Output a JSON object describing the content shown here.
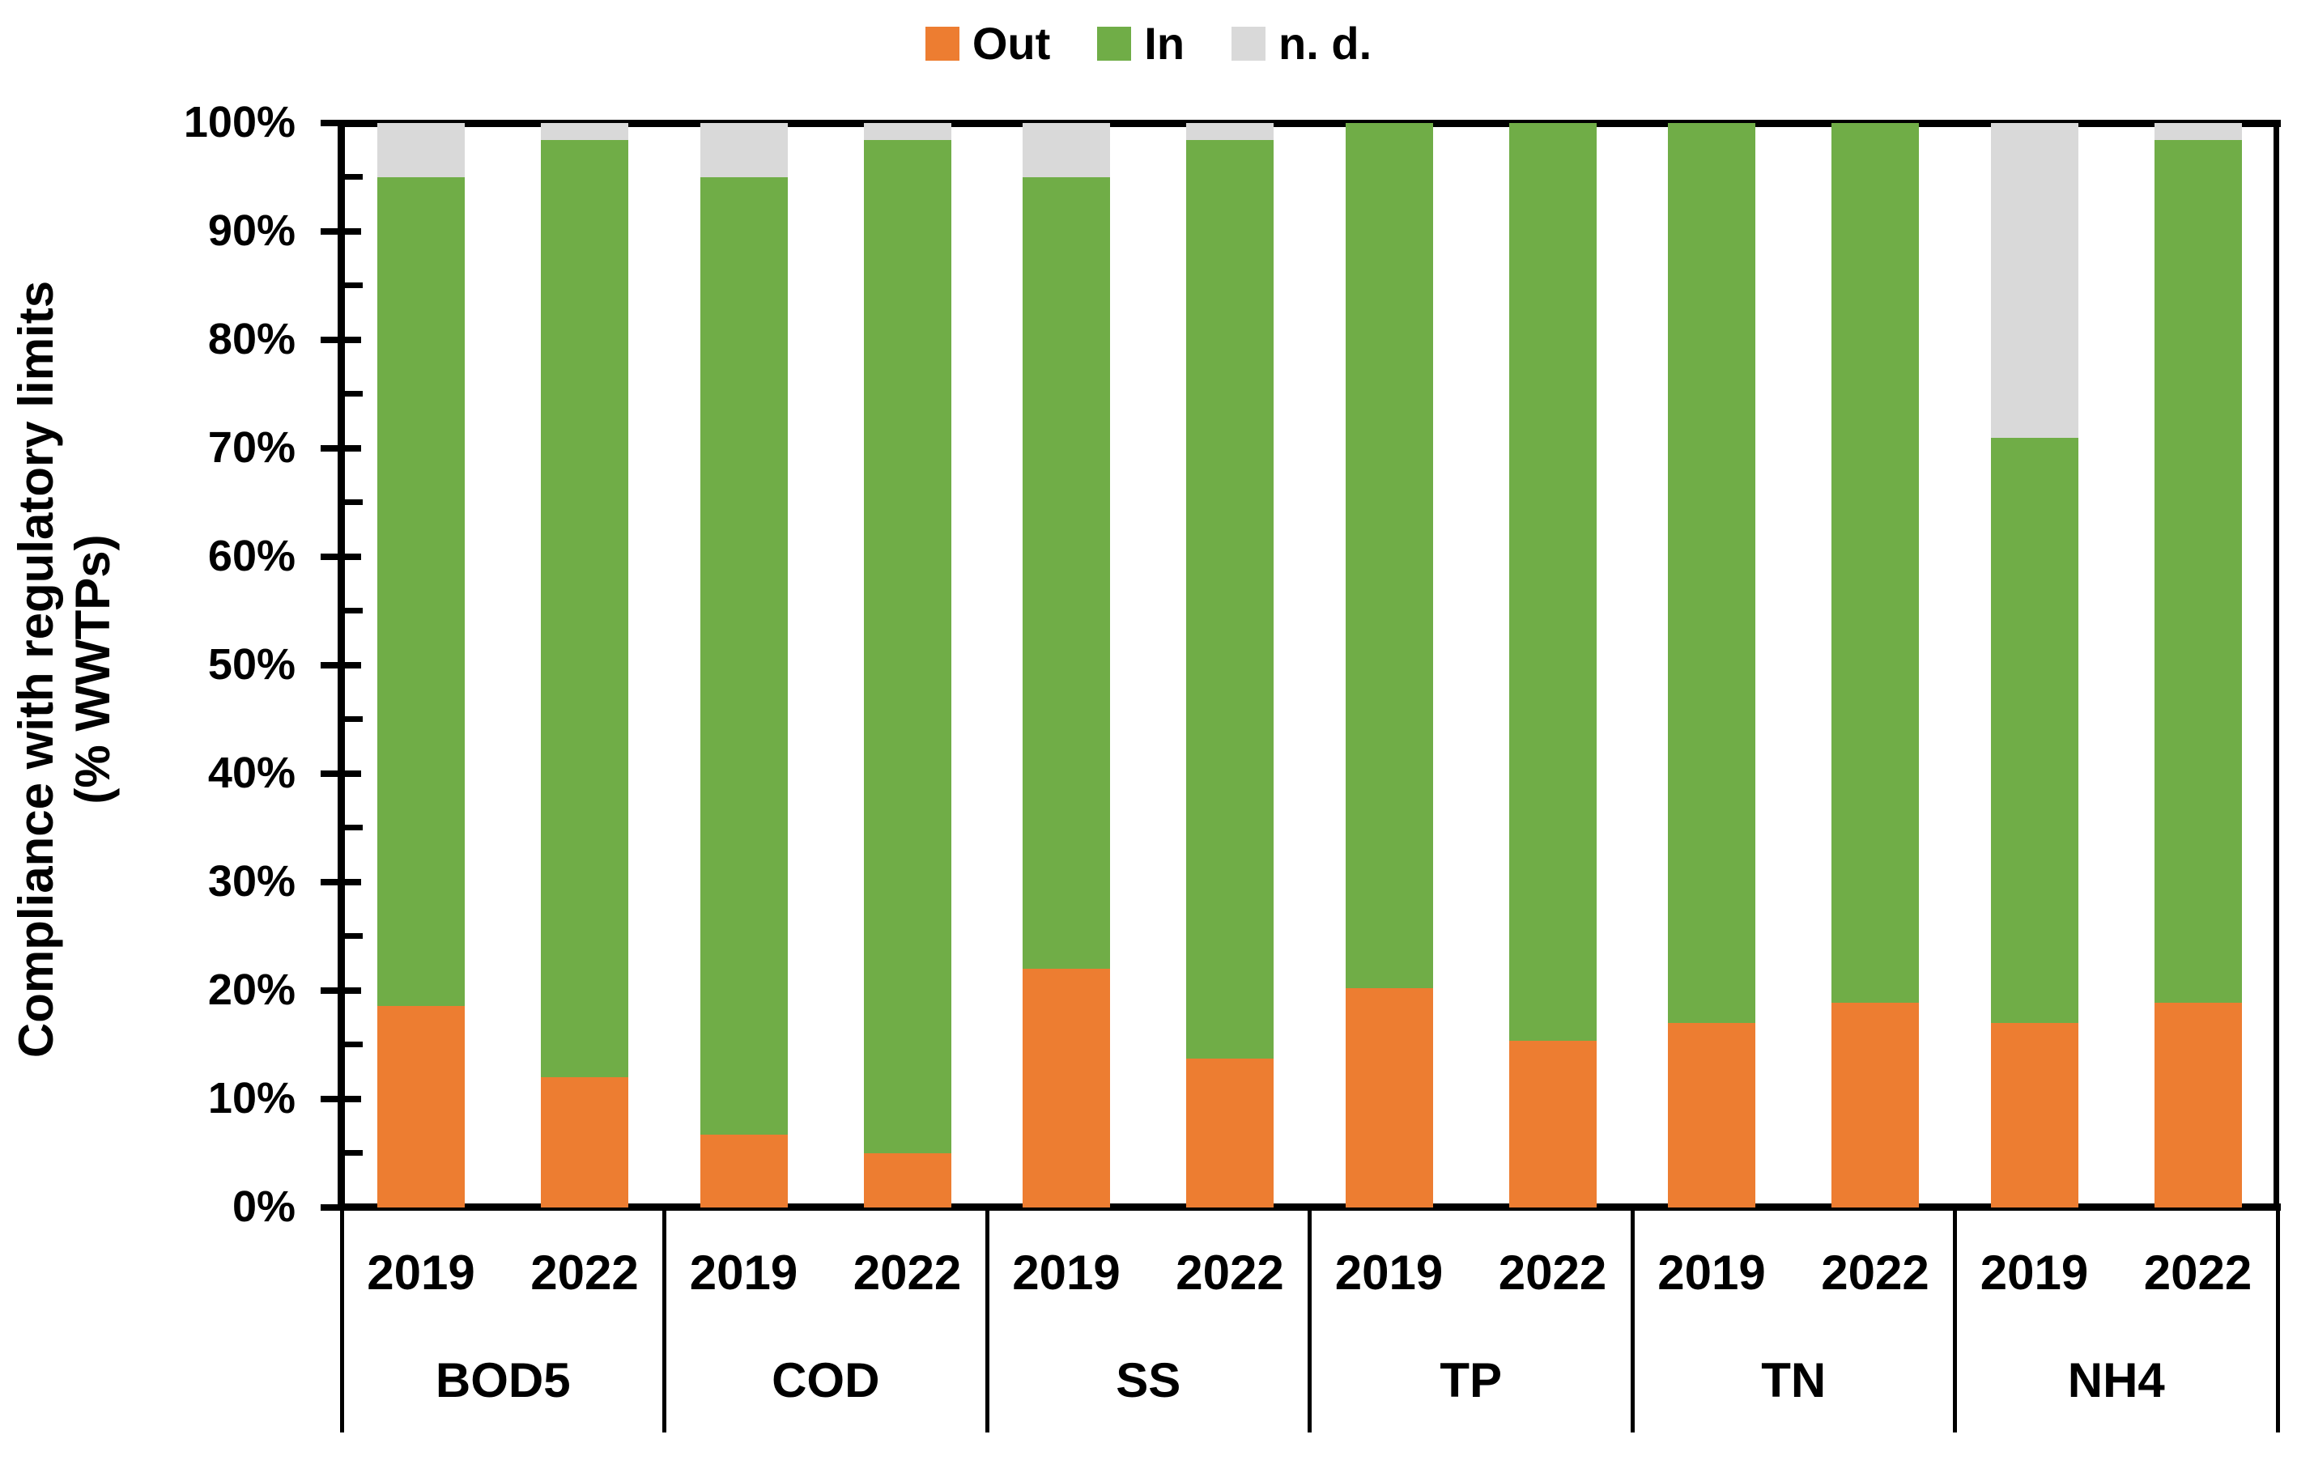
{
  "legend": {
    "items": [
      {
        "label": "Out",
        "color": "#ED7D31"
      },
      {
        "label": "In",
        "color": "#70AD47"
      },
      {
        "label": "n. d.",
        "color": "#D9D9D9"
      }
    ]
  },
  "y_axis": {
    "title_line1": "Compliance with regulatory limits",
    "title_line2": "(% WWTPs)",
    "tick_labels": [
      "0%",
      "10%",
      "20%",
      "30%",
      "40%",
      "50%",
      "60%",
      "70%",
      "80%",
      "90%",
      "100%"
    ]
  },
  "chart_data": {
    "type": "bar",
    "stacked": true,
    "title": "",
    "xlabel": "",
    "ylabel": "Compliance with regulatory limits (% WWTPs)",
    "ylim": [
      0,
      100
    ],
    "y_unit": "%",
    "y_major_tick_step": 10,
    "y_minor_tick_step": 5,
    "grid": false,
    "legend_position": "top",
    "categories": [
      "BOD5",
      "COD",
      "SS",
      "TP",
      "TN",
      "NH4"
    ],
    "x_sublabels": [
      "2019",
      "2022"
    ],
    "series": [
      {
        "name": "Out",
        "color": "#ED7D31",
        "values": [
          [
            18.6,
            12.0
          ],
          [
            6.7,
            5.0
          ],
          [
            22.0,
            13.7
          ],
          [
            20.2,
            15.4
          ],
          [
            17.0,
            18.9
          ],
          [
            17.0,
            18.9
          ]
        ]
      },
      {
        "name": "In",
        "color": "#70AD47",
        "values": [
          [
            76.4,
            86.4
          ],
          [
            88.3,
            93.4
          ],
          [
            73.0,
            84.7
          ],
          [
            79.8,
            84.6
          ],
          [
            83.0,
            81.1
          ],
          [
            54.0,
            79.5
          ]
        ]
      },
      {
        "name": "n. d.",
        "color": "#D9D9D9",
        "values": [
          [
            5.0,
            1.6
          ],
          [
            5.0,
            1.6
          ],
          [
            5.0,
            1.6
          ],
          [
            0.0,
            0.0
          ],
          [
            0.0,
            0.0
          ],
          [
            29.0,
            1.6
          ]
        ]
      }
    ]
  }
}
